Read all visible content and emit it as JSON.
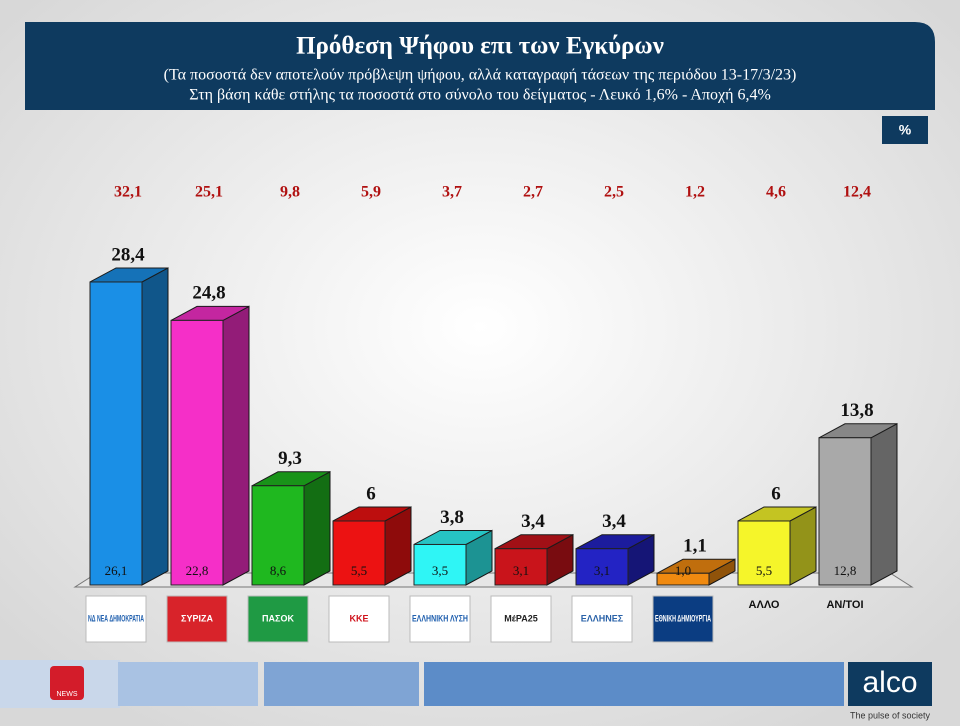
{
  "chart_data": {
    "type": "bar3d",
    "title": "Πρόθεση Ψήφου επι των Εγκύρων",
    "subtitle": [
      "(Τα ποσοστά δεν αποτελούν πρόβλεψη ψήφου, αλλά καταγραφή τάσεων της περιόδου  13-17/3/23)",
      "Στη βάση κάθε στήλης τα ποσοστά στο σύνολο του δείγματος - Λευκό 1,6% - Αποχή 6,4%"
    ],
    "unit_badge": "%",
    "categories": [
      "ΝΔ ΝΕΑ ΔΗΜΟΚΡΑΤΙΑ",
      "ΣΥΡΙΖΑ",
      "ΠΑΣΟΚ",
      "ΚΚΕ",
      "ΕΛΛΗΝΙΚΗ ΛΥΣΗ",
      "ΜέΡΑ25",
      "ΕΛΛΗΝΕΣ",
      "ΕΘΝΙΚΗ ΔΗΜΙΟΥΡΓΙΑ",
      "ΑΛΛΟ",
      "ΑΝ/ΤΟΙ"
    ],
    "colors": [
      "#1a8fe6",
      "#f52fc8",
      "#1fb81f",
      "#ec1212",
      "#2ff5f5",
      "#c9141b",
      "#2323c4",
      "#f08a10",
      "#f5f52a",
      "#a9a9a9"
    ],
    "series": [
      {
        "color": "#b01010",
        "values": [
          32.1,
          25.1,
          9.8,
          5.9,
          3.7,
          2.7,
          2.5,
          1.2,
          4.6,
          12.4
        ],
        "value_labels": [
          "32,1",
          "25,1",
          "9,8",
          "5,9",
          "3,7",
          "2,7",
          "2,5",
          "1,2",
          "4,6",
          "12,4"
        ]
      },
      {
        "color": "#111111",
        "values": [
          28.4,
          24.8,
          9.3,
          6,
          3.8,
          3.4,
          3.4,
          1.1,
          6,
          13.8
        ],
        "value_labels": [
          "28,4",
          "24,8",
          "9,3",
          "6",
          "3,8",
          "3,4",
          "3,4",
          "1,1",
          "6",
          "13,8"
        ]
      },
      {
        "color": "#111111",
        "values": [
          26.1,
          22.8,
          8.6,
          5.5,
          3.5,
          3.1,
          3.1,
          1.0,
          5.5,
          12.8
        ],
        "value_labels": [
          "26,1",
          "22,8",
          "8,6",
          "5,5",
          "3,5",
          "3,1",
          "3,1",
          "1,0",
          "5,5",
          "12,8"
        ]
      }
    ],
    "footer": {
      "brand": "alco",
      "tagline": "The pulse of society",
      "channel": "NEWS"
    }
  }
}
